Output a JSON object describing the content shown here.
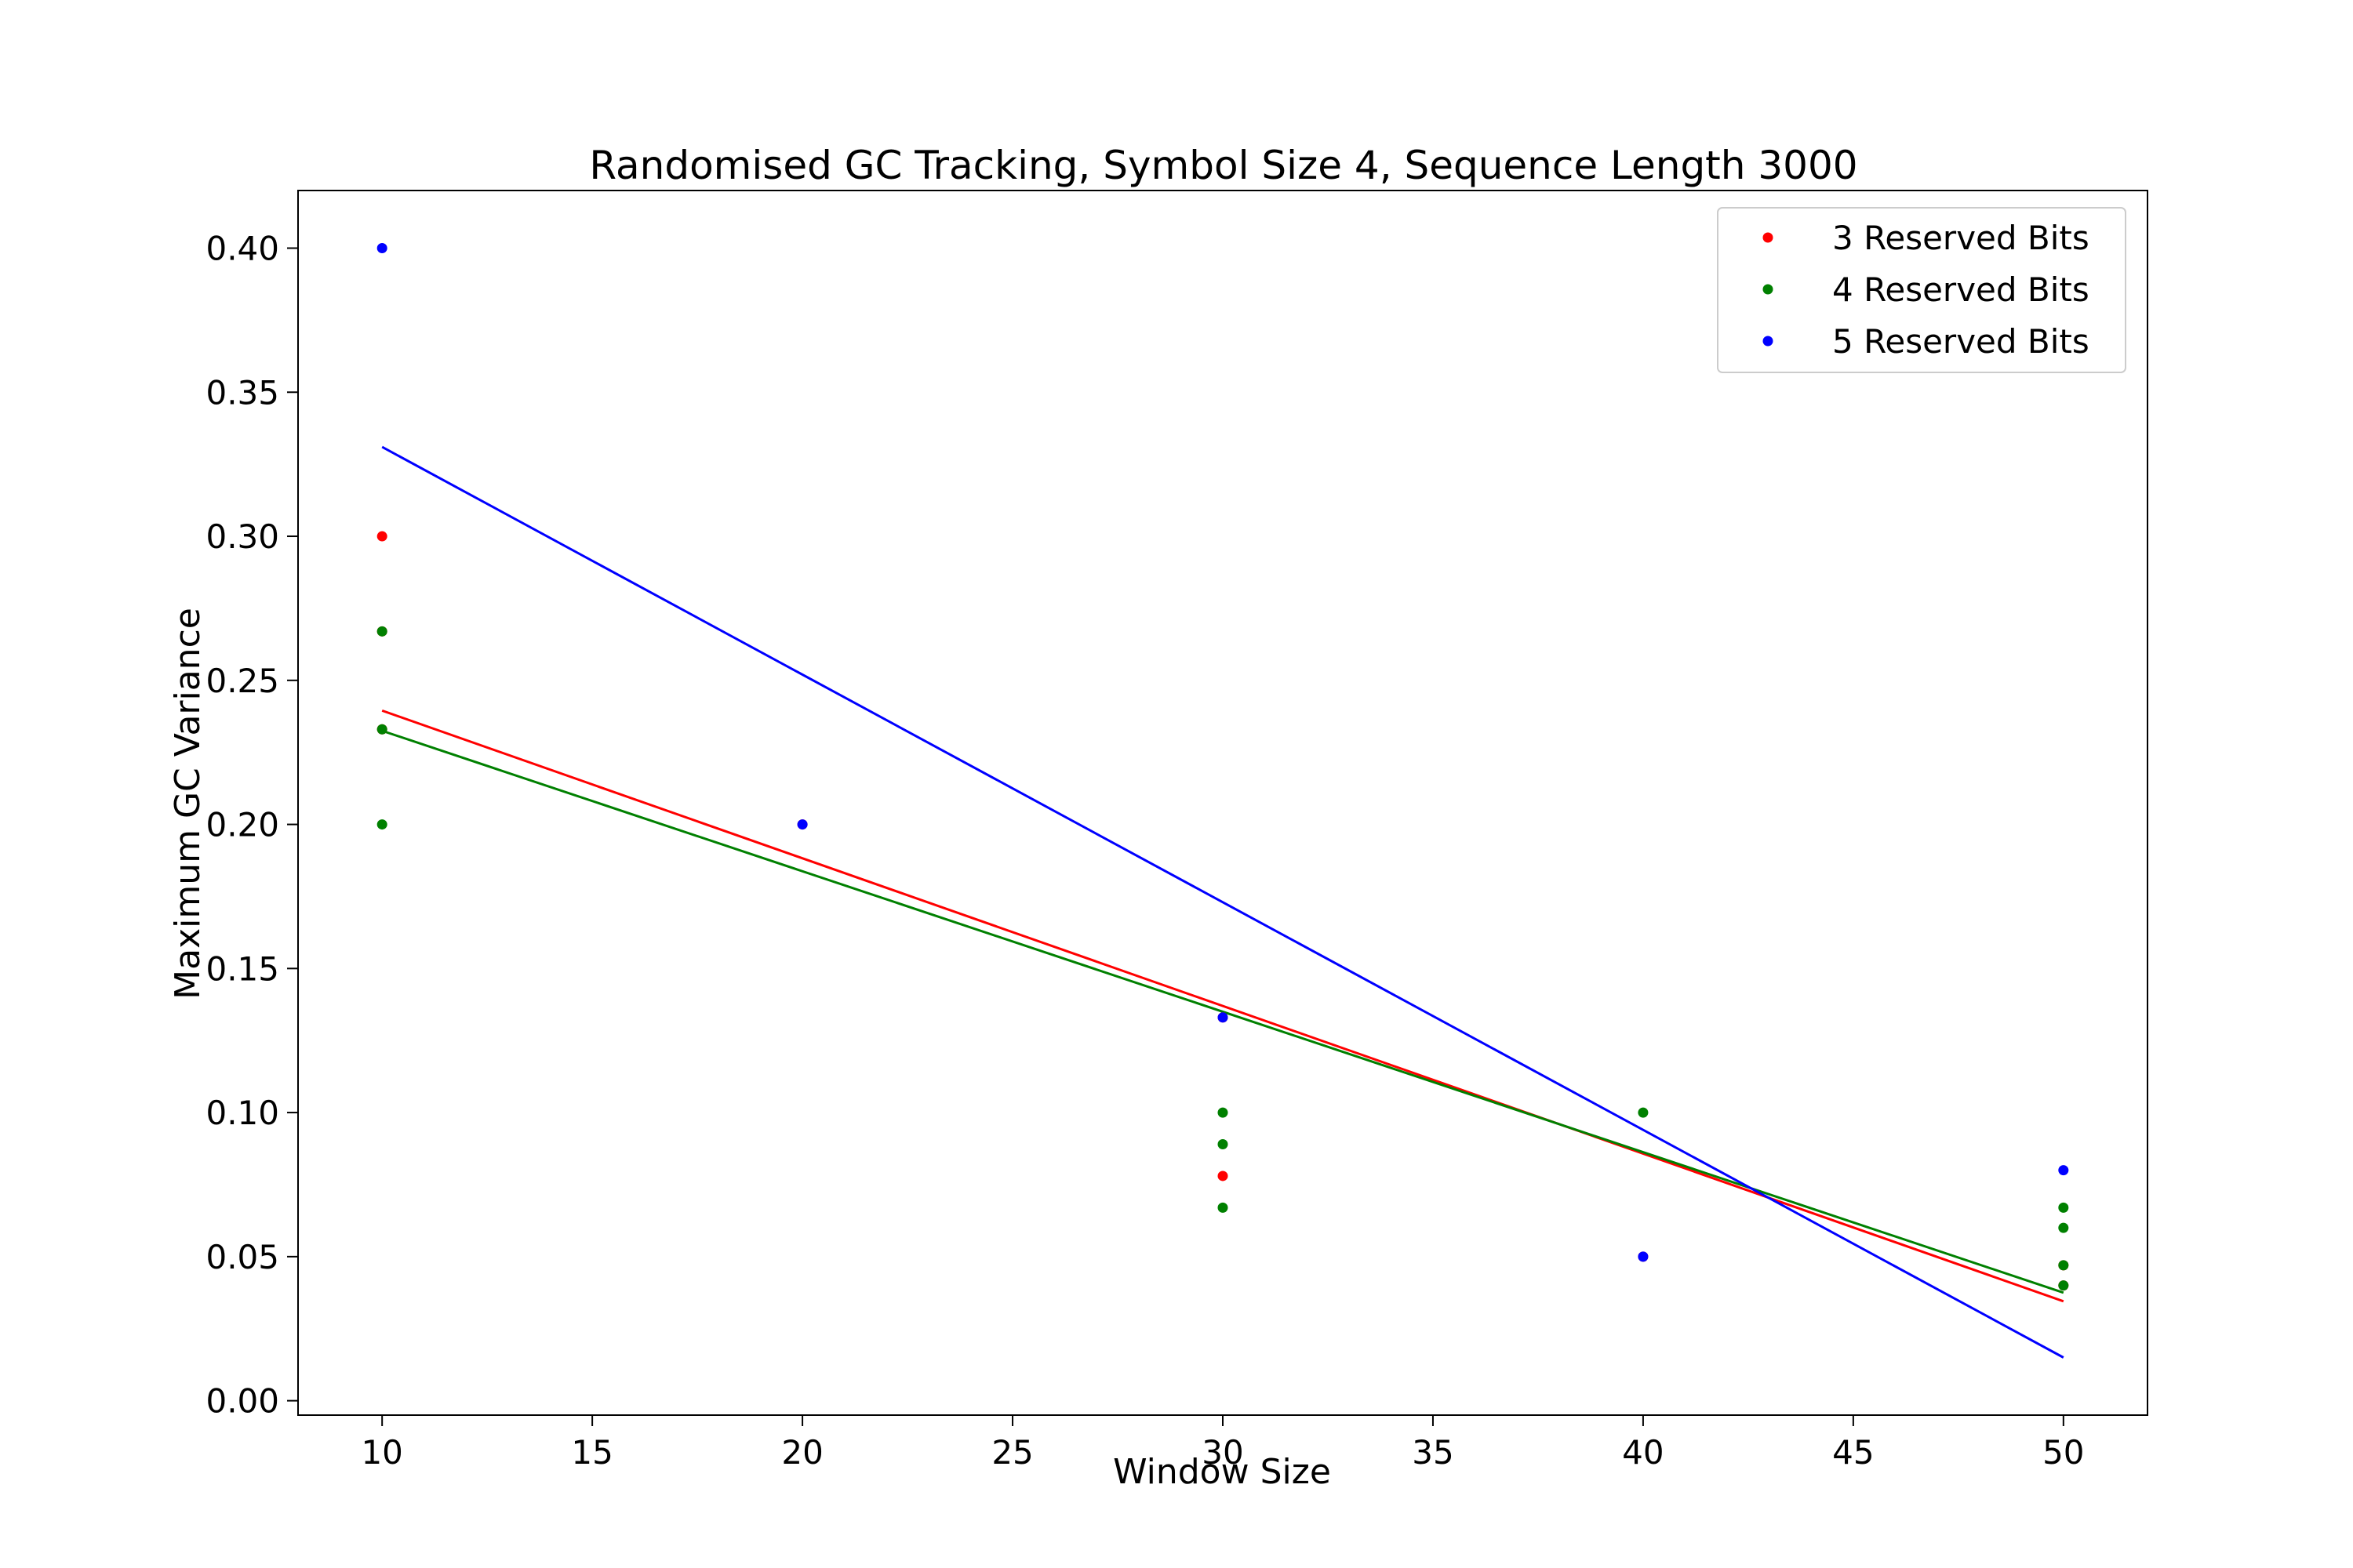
{
  "chart_data": {
    "type": "scatter",
    "title": "Randomised GC Tracking, Symbol Size 4, Sequence Length 3000",
    "xlabel": "Window Size",
    "ylabel": "Maximum GC Variance",
    "xlim": [
      8,
      52
    ],
    "ylim": [
      -0.005,
      0.42
    ],
    "xticks": [
      10,
      15,
      20,
      25,
      30,
      35,
      40,
      45,
      50
    ],
    "yticks": [
      0.0,
      0.05,
      0.1,
      0.15,
      0.2,
      0.25,
      0.3,
      0.35,
      0.4
    ],
    "ytick_labels": [
      "0.00",
      "0.05",
      "0.10",
      "0.15",
      "0.20",
      "0.25",
      "0.30",
      "0.35",
      "0.40"
    ],
    "grid": false,
    "legend_position": "top-right",
    "series": [
      {
        "name": "3 Reserved Bits",
        "color": "#ff0000",
        "points": [
          [
            10,
            0.3
          ],
          [
            10,
            0.267
          ],
          [
            10,
            0.233
          ],
          [
            20,
            0.2
          ],
          [
            30,
            0.133
          ],
          [
            30,
            0.078
          ],
          [
            40,
            0.05
          ],
          [
            50,
            0.047
          ],
          [
            50,
            0.04
          ]
        ],
        "fit_line": [
          [
            10,
            0.2395
          ],
          [
            50,
            0.0345
          ]
        ]
      },
      {
        "name": "4 Reserved Bits",
        "color": "#008000",
        "points": [
          [
            10,
            0.267
          ],
          [
            10,
            0.233
          ],
          [
            10,
            0.2
          ],
          [
            30,
            0.1
          ],
          [
            30,
            0.089
          ],
          [
            30,
            0.067
          ],
          [
            40,
            0.1
          ],
          [
            50,
            0.067
          ],
          [
            50,
            0.06
          ],
          [
            50,
            0.047
          ],
          [
            50,
            0.04
          ]
        ],
        "fit_line": [
          [
            10,
            0.2325
          ],
          [
            50,
            0.0375
          ]
        ]
      },
      {
        "name": "5 Reserved Bits",
        "color": "#0000ff",
        "points": [
          [
            10,
            0.4
          ],
          [
            20,
            0.2
          ],
          [
            30,
            0.133
          ],
          [
            40,
            0.05
          ],
          [
            50,
            0.08
          ]
        ],
        "fit_line": [
          [
            10,
            0.331
          ],
          [
            50,
            0.015
          ]
        ]
      }
    ]
  }
}
